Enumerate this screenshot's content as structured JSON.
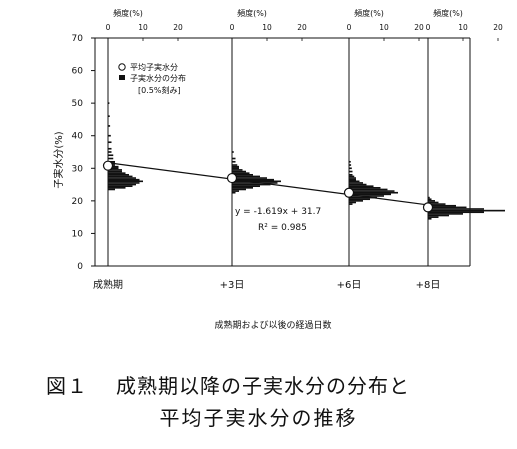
{
  "chart_data": {
    "type": "scatter",
    "ylabel": "子実水分(%)",
    "xlabel": "成熟期および以後の経過日数",
    "ylim": [
      0,
      70
    ],
    "yticks": [
      0,
      10,
      20,
      30,
      40,
      50,
      60,
      70
    ],
    "freq_axis": {
      "label": "頻度(%)",
      "ticks": [
        "0",
        "10",
        "20"
      ],
      "max": 25
    },
    "categories": [
      "成熟期",
      "+3日",
      "+6日",
      "+8日"
    ],
    "x": [
      0,
      3,
      6,
      8
    ],
    "series": [
      {
        "name": "平均子実水分",
        "marker": "open-circle",
        "values": [
          30.8,
          27.0,
          22.5,
          18.0
        ]
      }
    ],
    "distributions": {
      "name": "子実水分の分布",
      "note": "[0.5%刻み]",
      "bin_width": 0.5,
      "data": [
        [
          [
            23.5,
            2
          ],
          [
            24.0,
            5
          ],
          [
            24.5,
            7
          ],
          [
            25.0,
            8
          ],
          [
            25.5,
            9
          ],
          [
            26.0,
            10
          ],
          [
            26.5,
            9
          ],
          [
            27.0,
            8
          ],
          [
            27.5,
            7
          ],
          [
            28.0,
            6
          ],
          [
            28.5,
            5
          ],
          [
            29.0,
            4
          ],
          [
            29.5,
            4
          ],
          [
            30.0,
            3
          ],
          [
            30.5,
            3
          ],
          [
            31.0,
            2
          ],
          [
            31.5,
            2
          ],
          [
            32.0,
            2
          ],
          [
            33.0,
            1.5
          ],
          [
            34.0,
            1.5
          ],
          [
            35.0,
            1
          ],
          [
            36.0,
            1
          ],
          [
            38.0,
            1
          ],
          [
            40.0,
            0.8
          ],
          [
            43.0,
            0.6
          ],
          [
            46.0,
            0.5
          ],
          [
            50.0,
            0.4
          ]
        ],
        [
          [
            22.5,
            1
          ],
          [
            23.0,
            2
          ],
          [
            23.5,
            4
          ],
          [
            24.0,
            6
          ],
          [
            24.5,
            8
          ],
          [
            25.0,
            11
          ],
          [
            25.5,
            13
          ],
          [
            26.0,
            14
          ],
          [
            26.5,
            12
          ],
          [
            27.0,
            10
          ],
          [
            27.5,
            8
          ],
          [
            28.0,
            6
          ],
          [
            28.5,
            5
          ],
          [
            29.0,
            4
          ],
          [
            29.5,
            3
          ],
          [
            30.0,
            2
          ],
          [
            30.5,
            2
          ],
          [
            31.0,
            1.5
          ],
          [
            32.0,
            1
          ],
          [
            33.0,
            1
          ],
          [
            35.0,
            0.5
          ]
        ],
        [
          [
            19.0,
            1
          ],
          [
            19.5,
            2
          ],
          [
            20.0,
            4
          ],
          [
            20.5,
            6
          ],
          [
            21.0,
            8
          ],
          [
            21.5,
            10
          ],
          [
            22.0,
            12
          ],
          [
            22.5,
            14
          ],
          [
            23.0,
            13
          ],
          [
            23.5,
            11
          ],
          [
            24.0,
            9
          ],
          [
            24.5,
            7
          ],
          [
            25.0,
            5
          ],
          [
            25.5,
            4
          ],
          [
            26.0,
            3
          ],
          [
            26.5,
            2
          ],
          [
            27.0,
            2
          ],
          [
            27.5,
            1.5
          ],
          [
            28.0,
            1
          ],
          [
            29.0,
            1
          ],
          [
            30.0,
            0.8
          ],
          [
            31.0,
            0.6
          ],
          [
            32.0,
            0.5
          ]
        ],
        [
          [
            14.5,
            1
          ],
          [
            15.0,
            3
          ],
          [
            15.5,
            6
          ],
          [
            16.0,
            10
          ],
          [
            16.5,
            16
          ],
          [
            17.0,
            22
          ],
          [
            17.5,
            16
          ],
          [
            18.0,
            11
          ],
          [
            18.5,
            8
          ],
          [
            19.0,
            5
          ],
          [
            19.5,
            3
          ],
          [
            20.0,
            2
          ],
          [
            20.5,
            1
          ],
          [
            21.0,
            0.5
          ]
        ]
      ]
    },
    "regression": {
      "slope": -1.619,
      "intercept": 31.7,
      "equation": "y = -1.619x + 31.7",
      "r2": "R² = 0.985"
    },
    "grid": false
  },
  "caption": {
    "number": "図１",
    "line1": "成熟期以降の子実水分の分布と",
    "line2": "平均子実水分の推移"
  }
}
